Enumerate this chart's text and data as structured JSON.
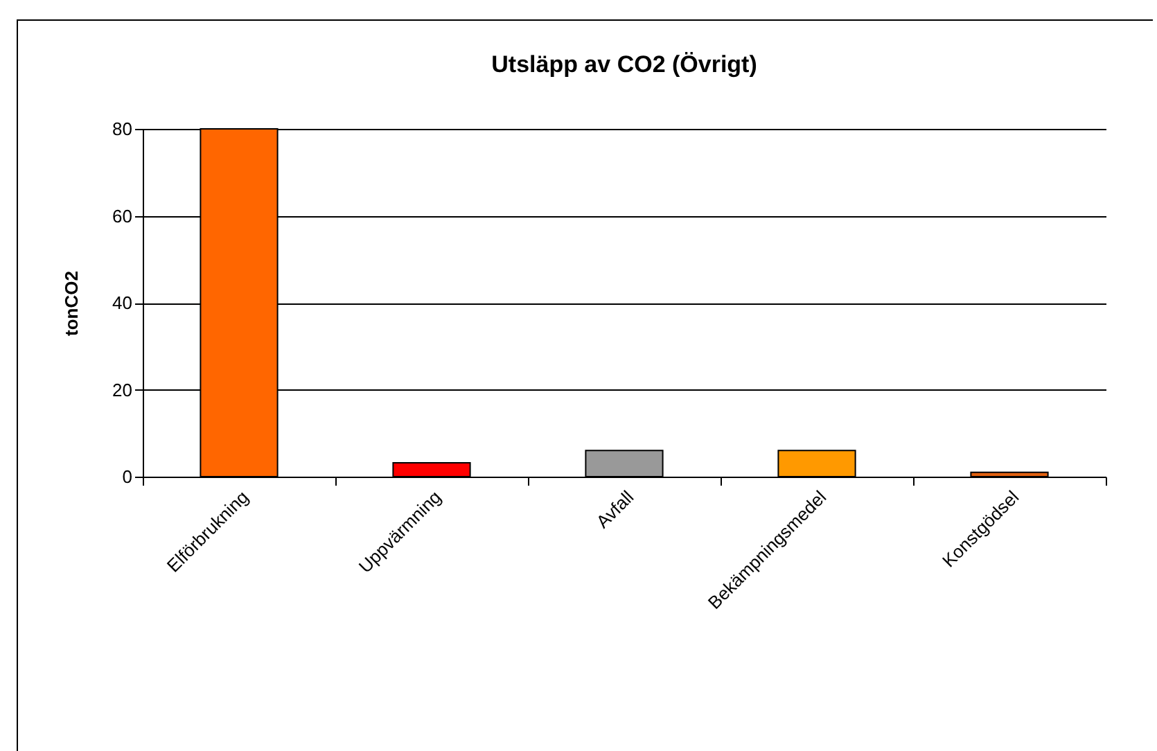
{
  "chart_data": {
    "type": "bar",
    "title": "Utsläpp av CO2 (Övrigt)",
    "ylabel": "tonCO2",
    "categories": [
      "Elförbrukning",
      "Uppvärmning",
      "Avfall",
      "Bekämpningsmedel",
      "Konstgödsel"
    ],
    "values": [
      80,
      3.2,
      6,
      6,
      1
    ],
    "colors": [
      "#ff6600",
      "#ff0000",
      "#999999",
      "#ff9900",
      "#e06010"
    ],
    "ylim": [
      0,
      80
    ],
    "yticks": [
      0,
      20,
      40,
      60,
      80
    ],
    "grid": "y"
  }
}
